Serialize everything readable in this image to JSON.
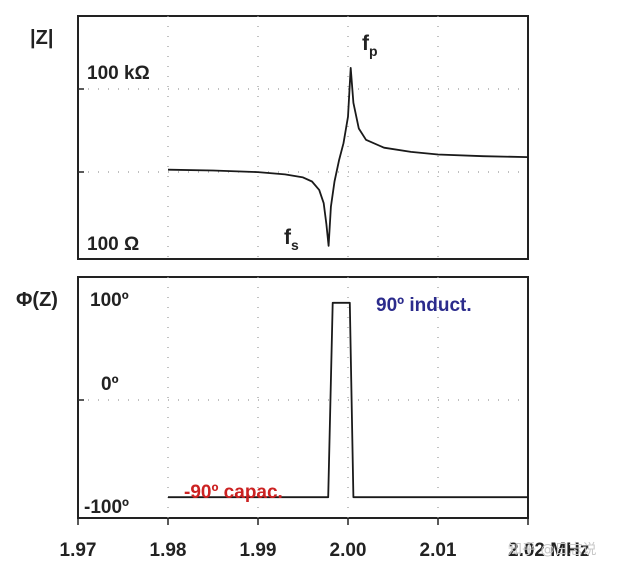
{
  "chart_data": [
    {
      "type": "line",
      "name": "impedance-magnitude",
      "ylabel": "|Z|",
      "yscale": "log",
      "y_ticks": [
        "100 kΩ",
        "100 Ω"
      ],
      "xlim": [
        1.97,
        2.02
      ],
      "x_unit": "MHz",
      "grid": "dotted",
      "annotations": [
        {
          "text_main": "f",
          "text_sub": "p",
          "x": 2.0004,
          "meaning": "peak"
        },
        {
          "text_main": "f",
          "text_sub": "s",
          "x": 1.9978,
          "meaning": "dip"
        }
      ],
      "series": [
        {
          "x": [
            1.98,
            1.985,
            1.99,
            1.993,
            1.995,
            1.996,
            1.9968,
            1.9973,
            1.9976,
            1.99785,
            1.9981,
            1.9985,
            1.999,
            1.9995,
            2.0,
            2.0003,
            2.0006,
            2.0012,
            2.002,
            2.004,
            2.007,
            2.01,
            2.015,
            2.02
          ],
          "y": [
            3000,
            2900,
            2700,
            2450,
            2150,
            1800,
            1250,
            700,
            280,
            110,
            600,
            1800,
            4500,
            9500,
            30000,
            250000,
            55000,
            18000,
            11000,
            7800,
            6500,
            5800,
            5400,
            5200
          ]
        }
      ]
    },
    {
      "type": "line",
      "name": "impedance-phase",
      "ylabel": "Φ(Z)",
      "y_ticks": [
        "100º",
        "0º",
        "-100º"
      ],
      "ylim": [
        -100,
        100
      ],
      "xlim": [
        1.97,
        2.02
      ],
      "x_unit": "MHz",
      "grid": "dotted",
      "annotations": [
        {
          "text": "90º induct.",
          "color": "#2b2b8c"
        },
        {
          "text": "-90º capac.",
          "color": "#cc2222"
        }
      ],
      "series": [
        {
          "x": [
            1.98,
            1.9978,
            1.9983,
            1.9992,
            2.0002,
            2.0006,
            2.02
          ],
          "y": [
            -90,
            -90,
            90,
            90,
            90,
            -90,
            -90
          ]
        }
      ]
    }
  ],
  "x_tick_labels": [
    "1.97",
    "1.98",
    "1.99",
    "2.00",
    "2.01",
    "2.02 MHz"
  ],
  "x_ticks": [
    1.97,
    1.98,
    1.99,
    2.0,
    2.01,
    2.02
  ],
  "watermark": "知乎 @日志说",
  "colors": {
    "axis": "#222222",
    "line": "#1a1a1a",
    "grid": "#9a9a9a",
    "inductive": "#2b2b8c",
    "capacitive": "#cc2222"
  }
}
